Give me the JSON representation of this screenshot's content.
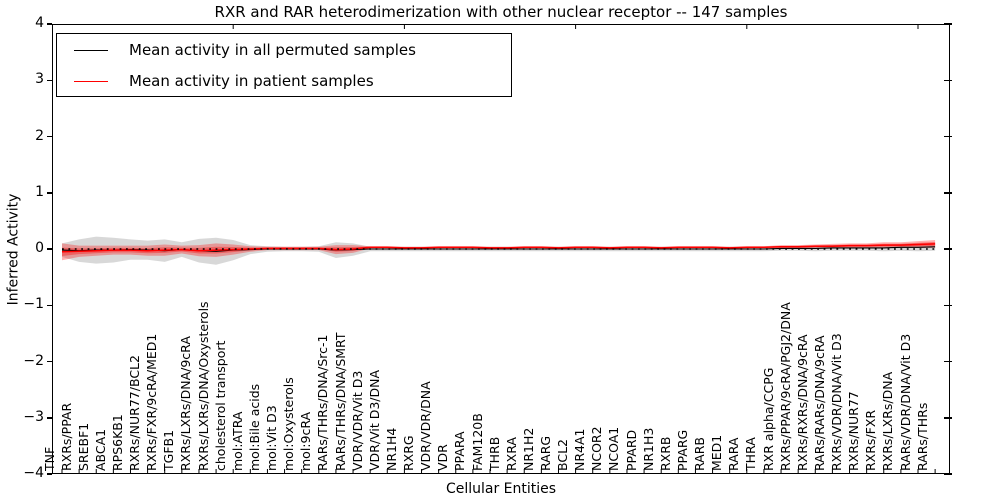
{
  "title": "RXR and RAR heterodimerization with other nuclear receptor -- 147 samples",
  "axes": {
    "ylabel": "Inferred Activity",
    "xlabel": "Cellular Entities",
    "ytick_labels": [
      "4",
      "3",
      "2",
      "1",
      "0",
      "−1",
      "−2",
      "−3",
      "−4"
    ]
  },
  "legend": {
    "items": [
      {
        "label": "Mean activity in all permuted samples",
        "color": "#000000"
      },
      {
        "label": "Mean activity in patient samples",
        "color": "#ff0000"
      }
    ]
  },
  "colors": {
    "patient_line": "#ff0000",
    "permuted_line": "#000000",
    "permuted_band": "#9e9e9e",
    "patient_band": "#ff0000",
    "zero_line": "#000000",
    "frame": "#000000"
  },
  "chart_data": {
    "type": "line",
    "title": "RXR and RAR heterodimerization with other nuclear receptor -- 147 samples",
    "xlabel": "Cellular Entities",
    "ylabel": "Inferred Activity",
    "ylim": [
      -4,
      4
    ],
    "yticks": [
      4,
      3,
      2,
      1,
      0,
      -1,
      -2,
      -3,
      -4
    ],
    "grid": false,
    "legend_position": "upper left",
    "zero_reference_line": {
      "y": 0,
      "style": "dotted",
      "color": "#000000"
    },
    "categories": [
      "TNF",
      "RXRs/PPAR",
      "SREBF1",
      "ABCA1",
      "RPS6KB1",
      "RXRs/NUR77/BCL2",
      "RXRs/FXR/9cRA/MED1",
      "TGFB1",
      "RXRs/LXRs/DNA/9cRA",
      "RXRs/LXRs/DNA/Oxysterols",
      "cholesterol transport",
      "mol:ATRA",
      "mol:Bile acids",
      "mol:Vit D3",
      "mol:Oxysterols",
      "mol:9cRA",
      "RARs/THRs/DNA/Src-1",
      "RARs/THRs/DNA/SMRT",
      "VDR/VDR/Vit D3",
      "VDR/Vit D3/DNA",
      "NR1H4",
      "RXRG",
      "VDR/VDR/DNA",
      "VDR",
      "PPARA",
      "FAM120B",
      "THRB",
      "RXRA",
      "NR1H2",
      "RARG",
      "BCL2",
      "NR4A1",
      "NCOR2",
      "NCOA1",
      "PPARD",
      "NR1H3",
      "RXRB",
      "PPARG",
      "RARB",
      "MED1",
      "RARA",
      "THRA",
      "RXR alpha/CCPG",
      "RXRs/PPAR/9cRA/PGJ2/DNA",
      "RXRs/RXRs/DNA/9cRA",
      "RARs/RARs/DNA/9cRA",
      "RXRs/VDR/DNA/Vit D3",
      "RXRs/NUR77",
      "RXRs/FXR",
      "RXRs/LXRs/DNA",
      "RARs/VDR/DNA/Vit D3",
      "RARs/THRs"
    ],
    "series": [
      {
        "name": "Mean activity in all permuted samples",
        "color": "#000000",
        "values": [
          -0.02,
          -0.03,
          -0.02,
          -0.02,
          -0.01,
          -0.02,
          -0.03,
          -0.01,
          -0.03,
          -0.04,
          -0.02,
          -0.01,
          0,
          0,
          0,
          0,
          -0.02,
          -0.01,
          0,
          0,
          0,
          0,
          0,
          0,
          0,
          0,
          0,
          0,
          0,
          0,
          0,
          0,
          0,
          0,
          0,
          0,
          0,
          0,
          0,
          0,
          0,
          0,
          0.01,
          0.01,
          0.01,
          0.02,
          0.02,
          0.02,
          0.02,
          0.03,
          0.03,
          0.04
        ]
      },
      {
        "name": "Mean activity in patient samples",
        "color": "#ff0000",
        "values": [
          -0.05,
          -0.04,
          -0.03,
          -0.02,
          -0.02,
          -0.03,
          -0.02,
          -0.01,
          -0.03,
          -0.02,
          -0.01,
          0,
          0.01,
          0.01,
          0.01,
          0.01,
          -0.01,
          0,
          0.03,
          0.03,
          0.02,
          0.02,
          0.03,
          0.03,
          0.03,
          0.02,
          0.02,
          0.03,
          0.03,
          0.02,
          0.03,
          0.03,
          0.02,
          0.03,
          0.03,
          0.02,
          0.03,
          0.03,
          0.03,
          0.02,
          0.03,
          0.03,
          0.04,
          0.04,
          0.05,
          0.05,
          0.06,
          0.06,
          0.07,
          0.07,
          0.08,
          0.09
        ]
      }
    ],
    "bands": [
      {
        "name": "permuted std band",
        "follows_series": 0,
        "color": "#9e9e9e",
        "opacity": 0.4,
        "halfwidths": [
          0.12,
          0.2,
          0.24,
          0.22,
          0.18,
          0.17,
          0.2,
          0.13,
          0.21,
          0.24,
          0.18,
          0.08,
          0.05,
          0.04,
          0.04,
          0.05,
          0.14,
          0.11,
          0.04,
          0.04,
          0.04,
          0.04,
          0.04,
          0.04,
          0.04,
          0.04,
          0.04,
          0.04,
          0.04,
          0.04,
          0.04,
          0.04,
          0.04,
          0.04,
          0.04,
          0.04,
          0.04,
          0.04,
          0.04,
          0.04,
          0.04,
          0.04,
          0.04,
          0.04,
          0.05,
          0.05,
          0.05,
          0.05,
          0.06,
          0.06,
          0.07,
          0.07
        ]
      },
      {
        "name": "patient std band",
        "follows_series": 1,
        "color": "#ff0000",
        "opacity": 0.3,
        "halfwidths": [
          0.15,
          0.1,
          0.09,
          0.08,
          0.08,
          0.09,
          0.1,
          0.07,
          0.1,
          0.12,
          0.09,
          0.05,
          0.03,
          0.03,
          0.03,
          0.03,
          0.08,
          0.07,
          0.02,
          0.02,
          0.02,
          0.02,
          0.02,
          0.02,
          0.02,
          0.02,
          0.02,
          0.02,
          0.02,
          0.02,
          0.02,
          0.02,
          0.02,
          0.02,
          0.02,
          0.02,
          0.02,
          0.02,
          0.02,
          0.02,
          0.02,
          0.02,
          0.03,
          0.03,
          0.03,
          0.04,
          0.04,
          0.04,
          0.05,
          0.05,
          0.06,
          0.07
        ]
      }
    ]
  }
}
